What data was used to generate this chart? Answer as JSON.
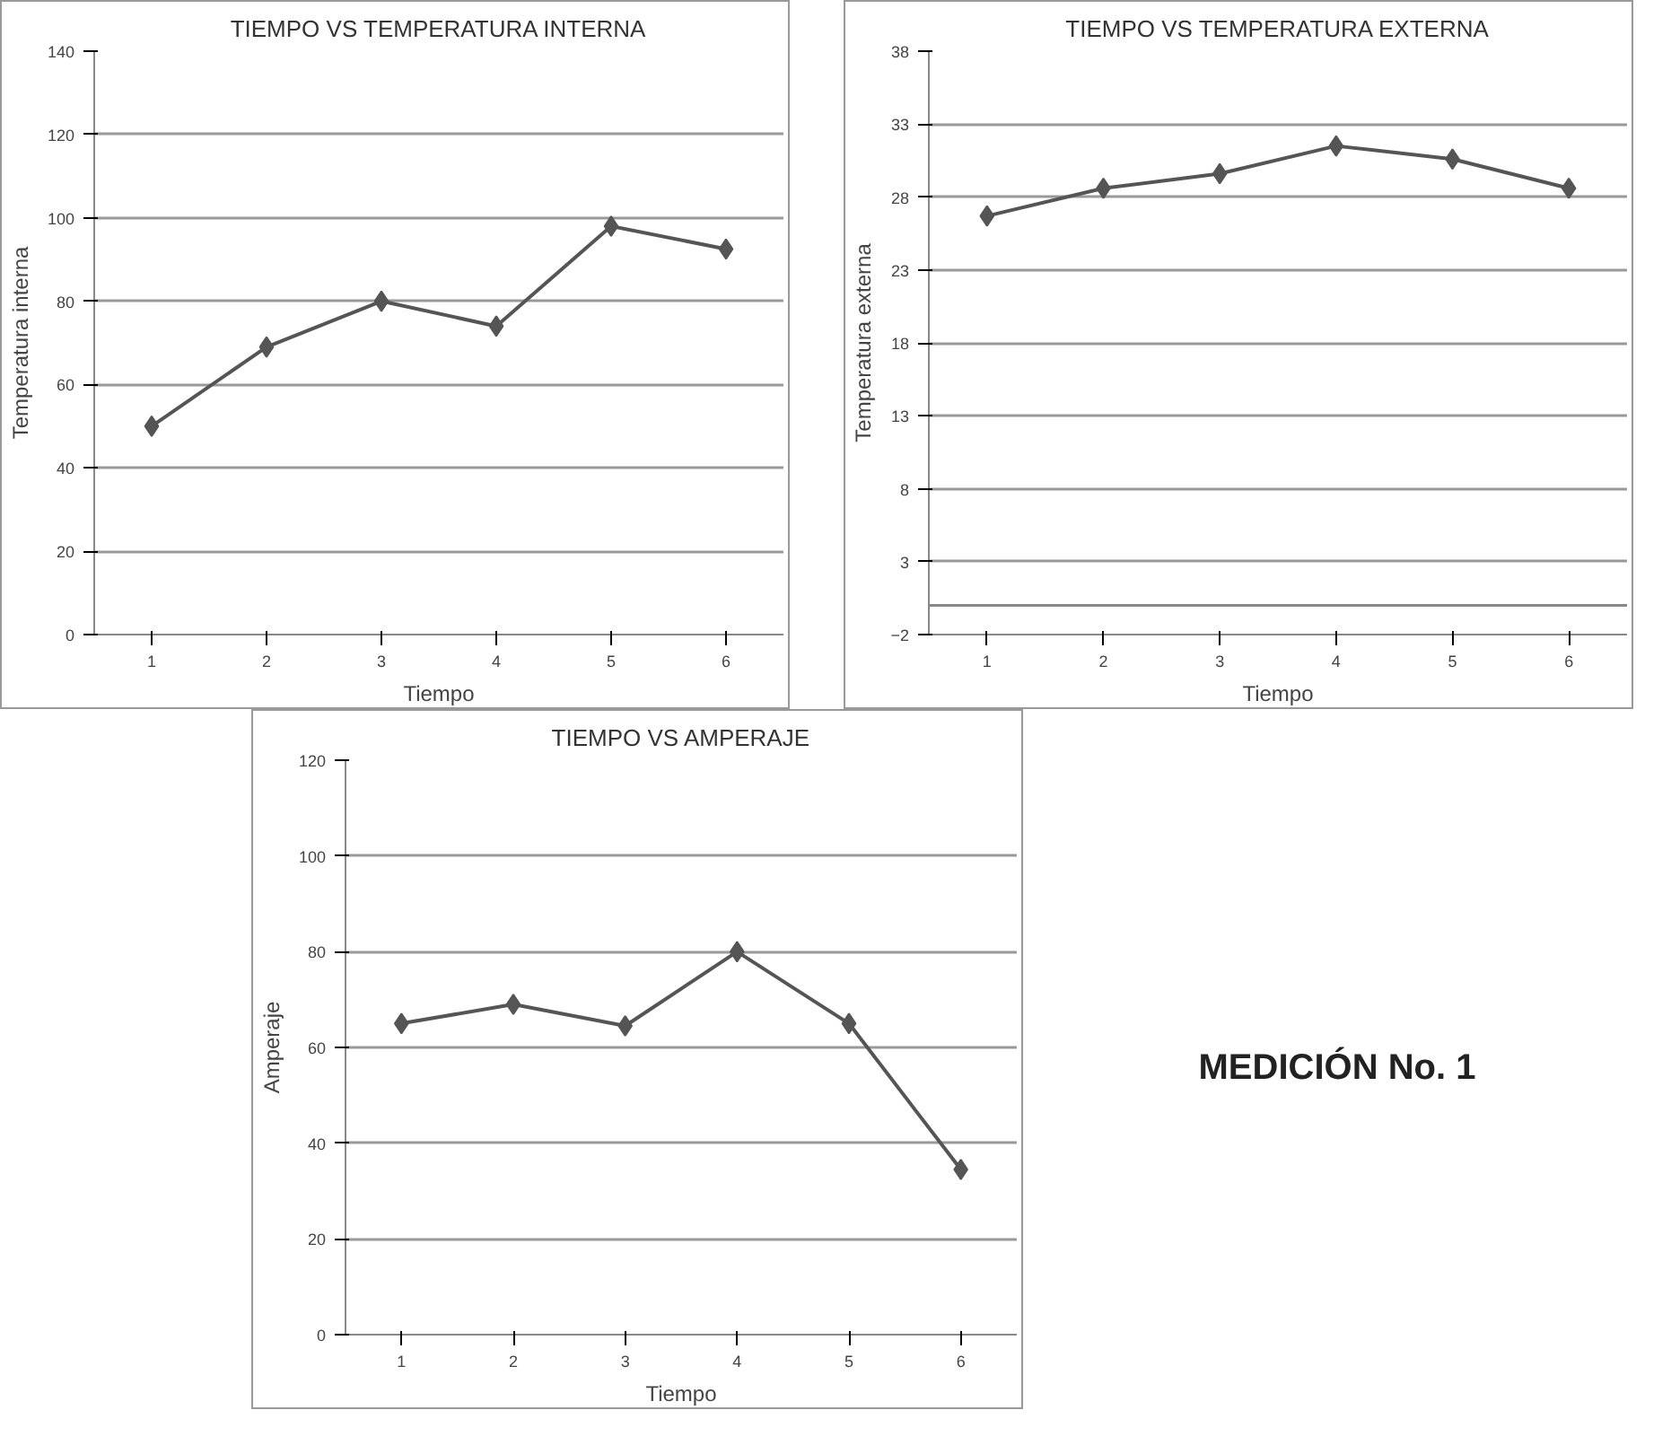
{
  "chart_data": [
    {
      "type": "line",
      "title": "TIEMPO VS TEMPERATURA INTERNA",
      "xlabel": "Tiempo",
      "ylabel": "Temperatura interna",
      "categories": [
        "1",
        "2",
        "3",
        "4",
        "5",
        "6"
      ],
      "series": [
        {
          "color": "#555555",
          "values": [
            50,
            69,
            80,
            74,
            98,
            92.5
          ]
        }
      ],
      "ylim": [
        0,
        140
      ],
      "yticks": [
        0,
        20,
        40,
        60,
        80,
        100,
        120,
        140
      ],
      "grid": "y",
      "marker": "diamond",
      "line_style": "solid"
    },
    {
      "type": "line",
      "title": "TIEMPO VS TEMPERATURA EXTERNA",
      "xlabel": "Tiempo",
      "ylabel": "Temperatura externa",
      "categories": [
        "1",
        "2",
        "3",
        "4",
        "5",
        "6"
      ],
      "series": [
        {
          "color": "#555555",
          "values": [
            26.7,
            28.6,
            29.6,
            31.5,
            30.6,
            28.6
          ]
        }
      ],
      "ylim": [
        -2,
        38
      ],
      "yticks": [
        -2,
        3,
        8,
        13,
        18,
        23,
        28,
        33,
        38
      ],
      "grid": "y",
      "marker": "diamond",
      "line_style": "solid",
      "ref_lines": [
        {
          "axis": "y",
          "value": 0,
          "color": "#888888"
        }
      ]
    },
    {
      "type": "line",
      "title": "TIEMPO VS AMPERAJE",
      "xlabel": "Tiempo",
      "ylabel": "Amperaje",
      "categories": [
        "1",
        "2",
        "3",
        "4",
        "5",
        "6"
      ],
      "series": [
        {
          "color": "#555555",
          "values": [
            65,
            69,
            64.5,
            80,
            65,
            34.5
          ]
        }
      ],
      "ylim": [
        0,
        120
      ],
      "yticks": [
        0,
        20,
        40,
        60,
        80,
        100,
        120
      ],
      "grid": "y",
      "marker": "diamond",
      "line_style": "solid"
    },
    {
      "type": "other",
      "annotations": [
        "MEDICIÓN No. 1"
      ]
    }
  ]
}
